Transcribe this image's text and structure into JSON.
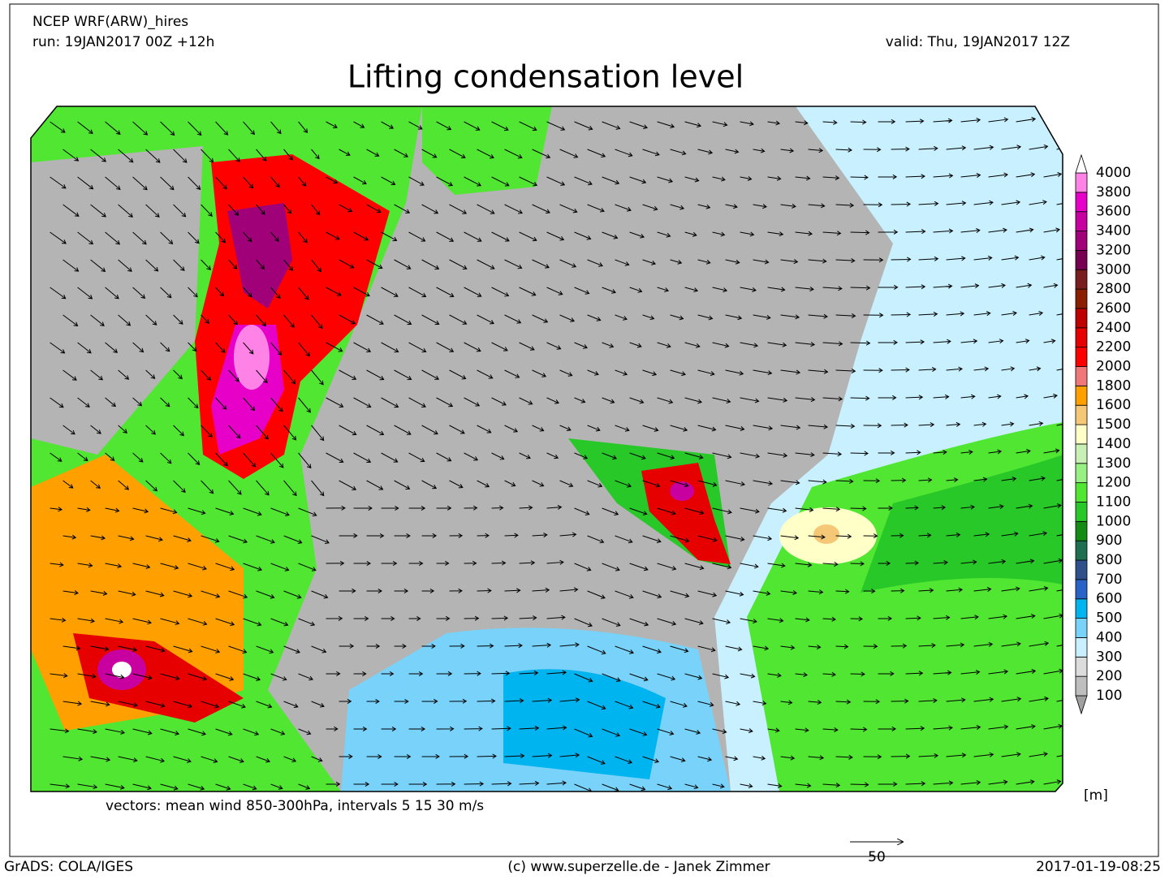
{
  "header": {
    "model": "NCEP WRF(ARW)_hires",
    "run": "run: 19JAN2017 00Z +12h",
    "valid": "valid: Thu, 19JAN2017 12Z",
    "title": "Lifting condensation level"
  },
  "caption": "vectors: mean wind 850-300hPa, intervals 5 15 30 m/s",
  "colorbar": {
    "unit": "[m]",
    "under_color": "#a0a0a0",
    "levels": [
      {
        "label": 100,
        "color": "#bebebe"
      },
      {
        "label": 200,
        "color": "#dcdcdc"
      },
      {
        "label": 300,
        "color": "#c8f0ff"
      },
      {
        "label": 400,
        "color": "#78d2fa"
      },
      {
        "label": 500,
        "color": "#00b4f0"
      },
      {
        "label": 600,
        "color": "#2864c8"
      },
      {
        "label": 700,
        "color": "#30508c"
      },
      {
        "label": 800,
        "color": "#1e6e50"
      },
      {
        "label": 900,
        "color": "#148c14"
      },
      {
        "label": 1000,
        "color": "#28c828"
      },
      {
        "label": 1100,
        "color": "#50e632"
      },
      {
        "label": 1200,
        "color": "#96f082"
      },
      {
        "label": 1300,
        "color": "#c8f0b4"
      },
      {
        "label": 1400,
        "color": "#ffffc8"
      },
      {
        "label": 1500,
        "color": "#f5c878"
      },
      {
        "label": 1600,
        "color": "#ffa000"
      },
      {
        "label": 1800,
        "color": "#f07878"
      },
      {
        "label": 2000,
        "color": "#ff0000"
      },
      {
        "label": 2200,
        "color": "#e60000"
      },
      {
        "label": 2400,
        "color": "#be0000"
      },
      {
        "label": 2600,
        "color": "#8c1e00"
      },
      {
        "label": 2800,
        "color": "#781e1e"
      },
      {
        "label": 3000,
        "color": "#780050"
      },
      {
        "label": 3200,
        "color": "#a00078"
      },
      {
        "label": 3400,
        "color": "#c800a0"
      },
      {
        "label": 3600,
        "color": "#e600c8"
      },
      {
        "label": 3800,
        "color": "#ff82e6"
      },
      {
        "label": 4000,
        "color": "#ffffff"
      }
    ]
  },
  "scale_arrow": 50,
  "footer": {
    "left": "GrADS: COLA/IGES",
    "center": "(c) www.superzelle.de - Janek Zimmer",
    "right": "2017-01-19-08:25"
  }
}
